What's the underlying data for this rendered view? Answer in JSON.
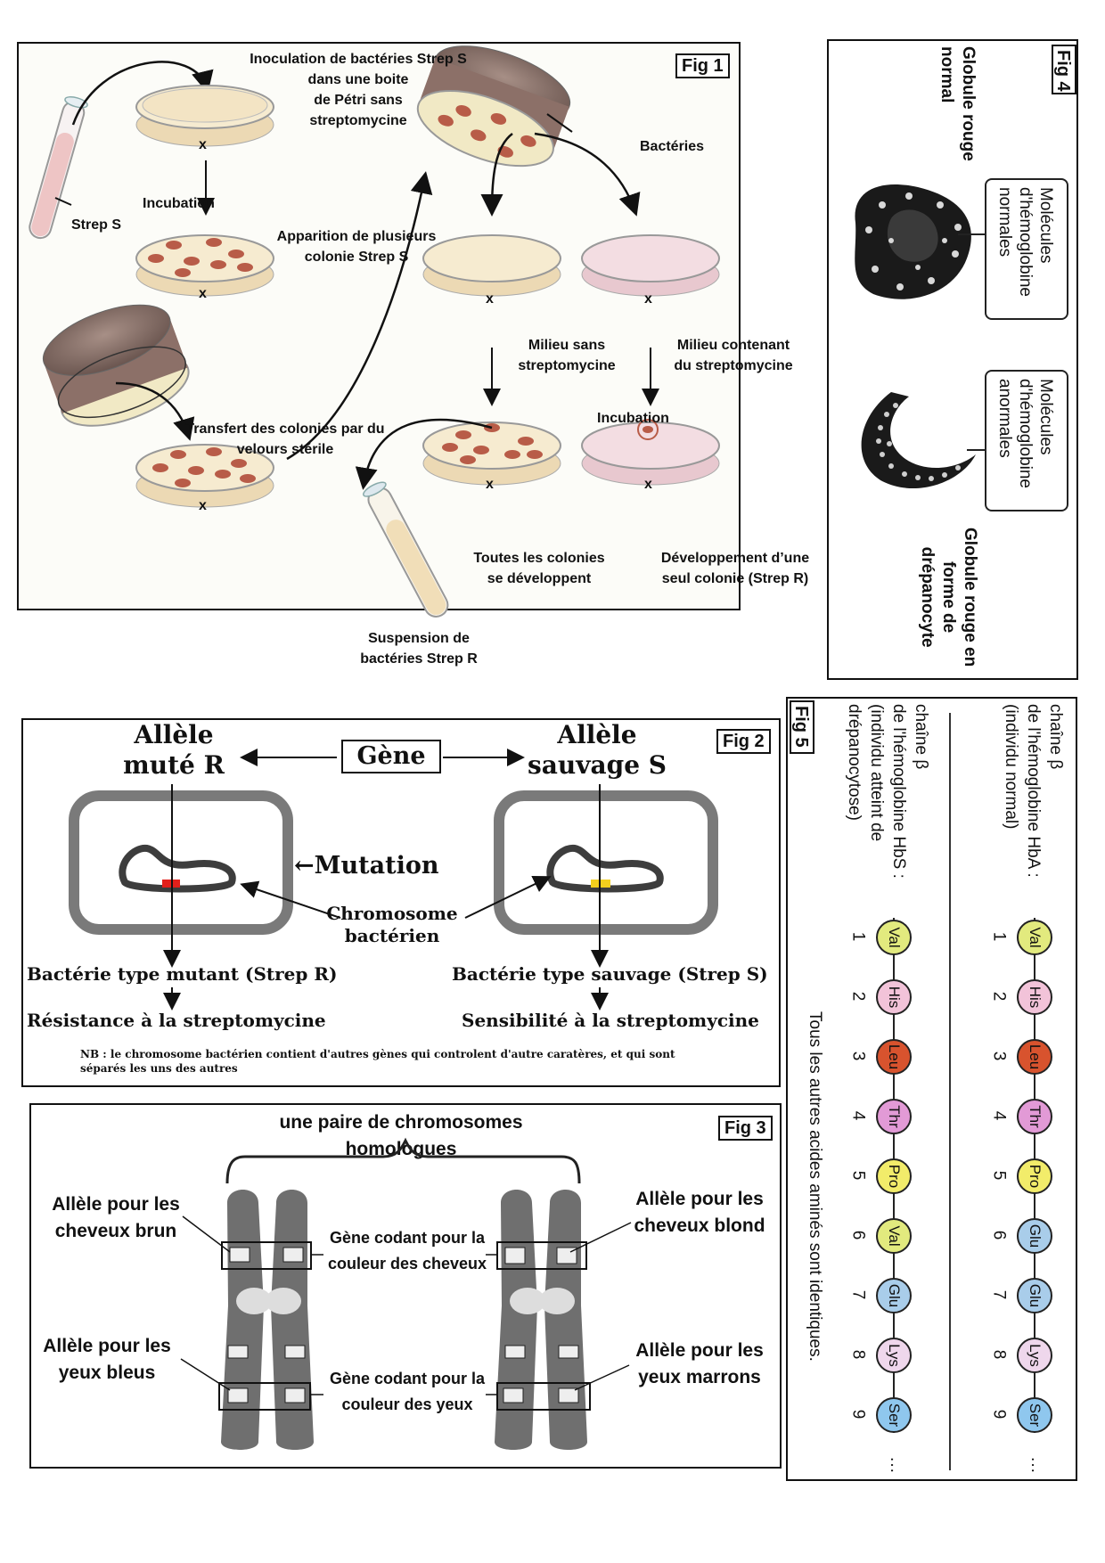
{
  "fig1": {
    "tag": "Fig 1",
    "inoculation": [
      "Inoculation de bactéries Strep S",
      "dans une boite",
      "de Pétri sans",
      "streptomycine"
    ],
    "strep_s": "Strep S",
    "incubation1": "Incubation",
    "apparition": [
      "Apparition de plusieurs",
      "colonie Strep S"
    ],
    "transfert": [
      "Transfert des colonies par du",
      "velours stérile"
    ],
    "bacteries": "Bactéries",
    "milieu_sans": [
      "Milieu sans",
      "streptomycine"
    ],
    "milieu_avec": [
      "Milieu contenant",
      "du streptomycine"
    ],
    "incubation2": "Incubation",
    "toutes": [
      "Toutes les colonies",
      "se développent"
    ],
    "developpement": [
      "Développement d’une",
      "seul colonie (Strep R)"
    ],
    "suspension": [
      "Suspension de",
      "bactéries Strep R"
    ],
    "x_mark": "x"
  },
  "fig2": {
    "tag": "Fig 2",
    "allele_mute": [
      "Allèle",
      "muté R"
    ],
    "gene": "Gène",
    "allele_sauvage": [
      "Allèle",
      "sauvage S"
    ],
    "mutation": "←Mutation",
    "chromosome": [
      "Chromosome",
      "bactérien"
    ],
    "type_mutant": "Bactérie type mutant (Strep R)",
    "type_sauvage": "Bactérie type sauvage (Strep S)",
    "resistance": "Résistance à la streptomycine",
    "sensibilite": "Sensibilité à la streptomycine",
    "nb": [
      "NB : le chromosome bactérien contient d'autres gènes qui controlent d'autre caratères, et qui sont",
      "séparés les uns des autres"
    ]
  },
  "fig3": {
    "tag": "Fig 3",
    "paire": [
      "une paire de chromosomes",
      "homologues"
    ],
    "brun": [
      "Allèle pour les",
      "cheveux brun"
    ],
    "blond": [
      "Allèle pour les",
      "cheveux blond"
    ],
    "gene_cheveux": [
      "Gène codant pour la",
      "couleur des cheveux"
    ],
    "bleus": [
      "Allèle pour les",
      "yeux bleus"
    ],
    "marrons": [
      "Allèle pour les",
      "yeux marrons"
    ],
    "gene_yeux": [
      "Gène codant pour la",
      "couleur des yeux"
    ]
  },
  "fig4": {
    "tag": "Fig 4",
    "normal": [
      "Globule rouge",
      "normal"
    ],
    "molecules_normales": [
      "Molécules",
      "d'hémoglobine",
      "normales"
    ],
    "molecules_anormales": [
      "Molécules",
      "d'hémoglobine",
      "anormales"
    ],
    "drepanocyte": [
      "Globule rouge en",
      "forme de",
      "drépanocyte"
    ]
  },
  "fig5": {
    "tag": "Fig 5",
    "hba_label": [
      "chaîne β",
      "de l'hémoglobine HbA :",
      "(individu normal)"
    ],
    "hbs_label": [
      "chaîne β",
      "de l'hémoglobine HbS :",
      "(individu atteint de",
      "drépanocytose)"
    ],
    "note": "Tous les autres acides aminés sont identiques.",
    "positions": [
      "1",
      "2",
      "3",
      "4",
      "5",
      "6",
      "7",
      "8",
      "9"
    ],
    "hba": [
      "Val",
      "His",
      "Leu",
      "Thr",
      "Pro",
      "Glu",
      "Glu",
      "Lys",
      "Ser"
    ],
    "hbs": [
      "Val",
      "His",
      "Leu",
      "Thr",
      "Pro",
      "Val",
      "Glu",
      "Lys",
      "Ser"
    ],
    "ellipsis": "···",
    "colors": {
      "Val": "#e2ea7e",
      "His": "#f2c3d9",
      "Leu": "#d8532e",
      "Thr": "#e29ad6",
      "Pro": "#f2ec6a",
      "Glu": "#a9cdea",
      "Lys": "#efd7ec",
      "Ser": "#8fc7ee"
    }
  }
}
